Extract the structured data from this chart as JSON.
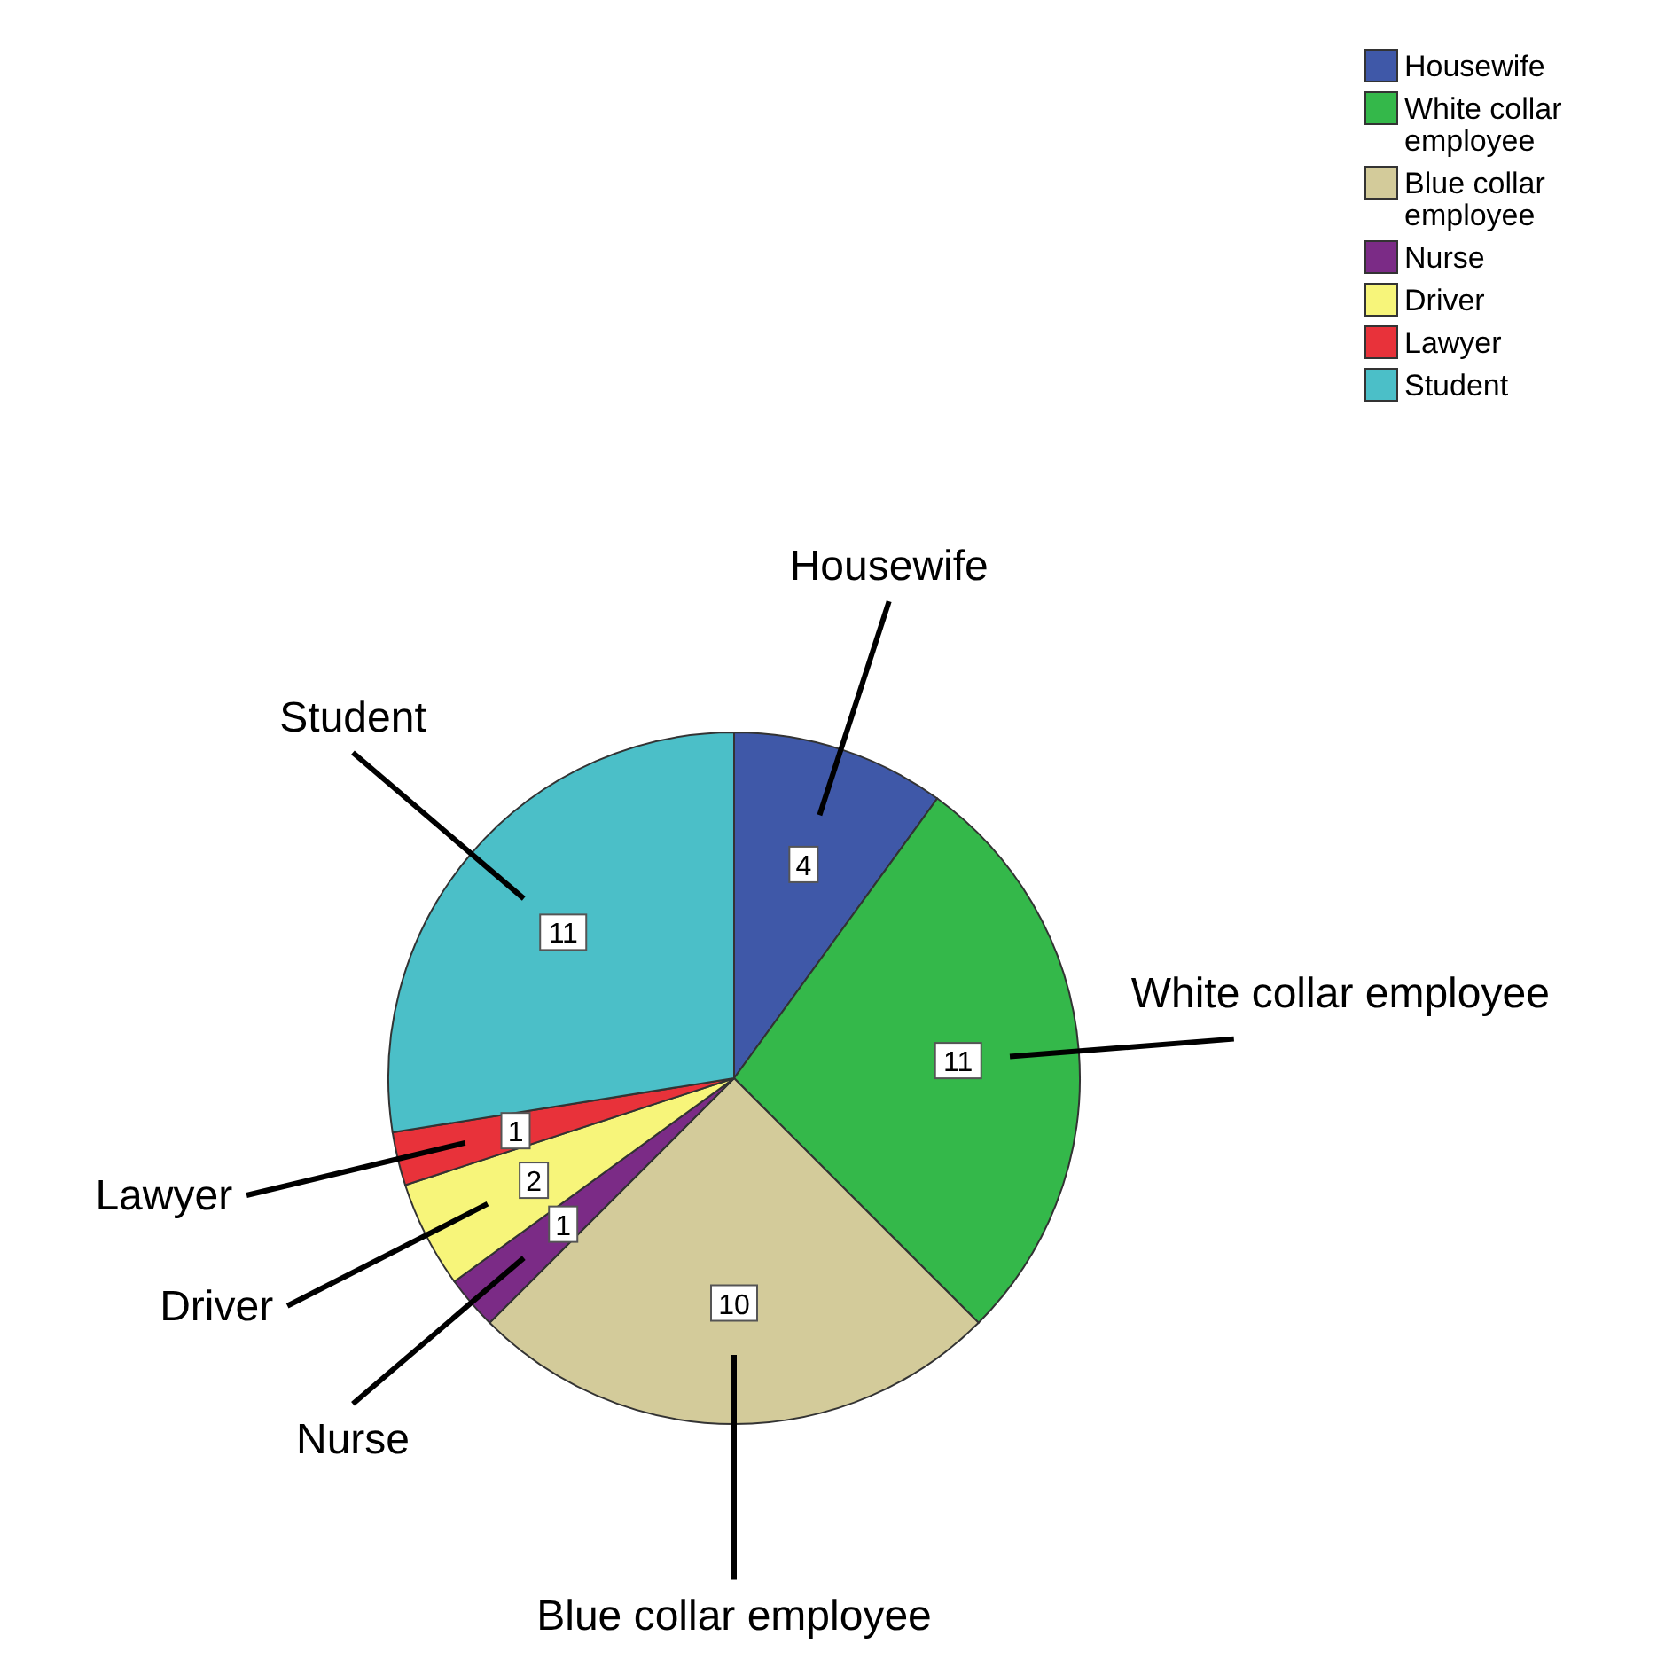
{
  "chart_data": {
    "type": "pie",
    "categories": [
      "Housewife",
      "White collar employee",
      "Blue collar employee",
      "Nurse",
      "Driver",
      "Lawyer",
      "Student"
    ],
    "values": [
      4,
      11,
      10,
      1,
      2,
      1,
      11
    ],
    "colors": [
      "#3f58a8",
      "#34b84a",
      "#d3cb9a",
      "#7b2b86",
      "#f7f57a",
      "#e8323a",
      "#4bbfc8"
    ],
    "data_labels": true,
    "legend": "top right"
  }
}
